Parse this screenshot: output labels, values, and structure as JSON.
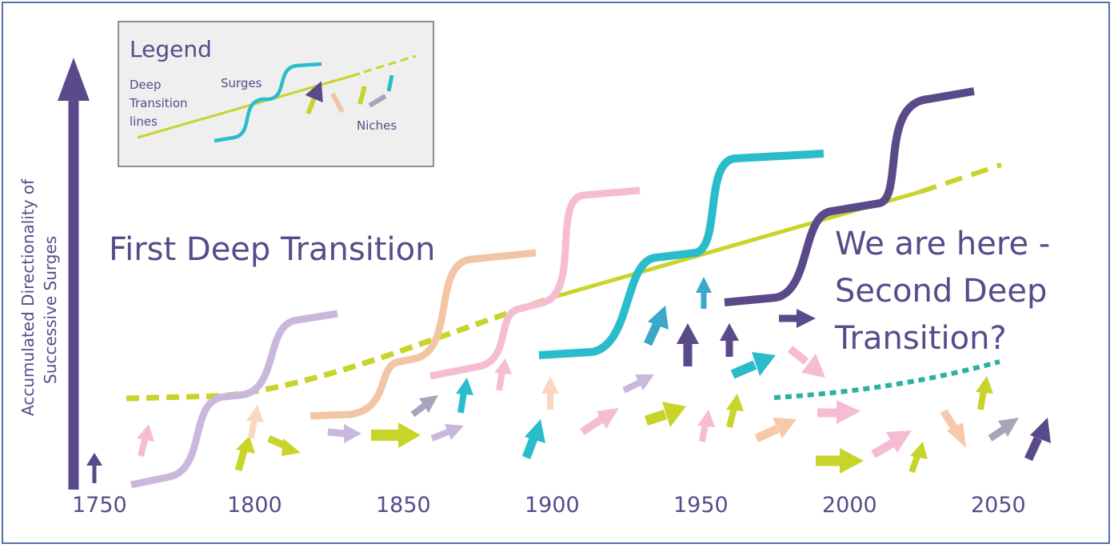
{
  "legend": {
    "title": "Legend",
    "deep_transition_label": [
      "Deep",
      "Transition",
      "lines"
    ],
    "surges_label": "Surges",
    "niches_label": "Niches"
  },
  "y_axis_label": [
    "Accumulated Directionality of",
    "Successive Surges"
  ],
  "x_ticks": [
    "1750",
    "1800",
    "1850",
    "1900",
    "1950",
    "2000",
    "2050"
  ],
  "first_transition_label": "First Deep Transition",
  "second_transition_label": [
    "We are here -",
    "Second Deep",
    "Transition?"
  ],
  "colors": {
    "text": "#5a4a8a",
    "deep_transition": "#c8d42a",
    "axis": "#5a4a8a",
    "lilac": "#c9b8dc",
    "peach": "#f2c6a4",
    "pink": "#f6bcd4",
    "cyan": "#2bbccc",
    "teal": "#2db0a0",
    "purple": "#5a4a8a",
    "lime": "#c8d42a",
    "gray": "#a8a4bc"
  }
}
